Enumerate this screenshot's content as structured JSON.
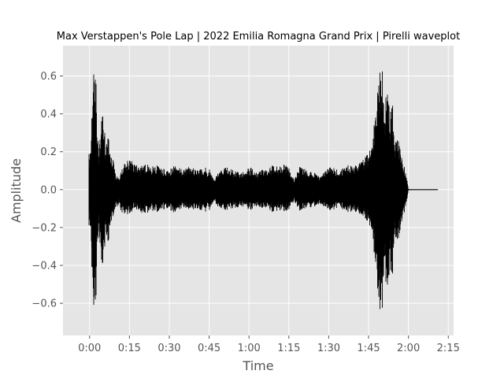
{
  "chart_data": {
    "type": "area",
    "title": "Max Verstappen's Pole Lap | 2022 Emilia Romagna Grand Prix | Pirelli waveplot",
    "xlabel": "Time",
    "ylabel": "Amplitude",
    "xlim": [
      -10,
      137
    ],
    "ylim": [
      -0.77,
      0.76
    ],
    "grid": true,
    "x_ticks": [
      0,
      15,
      30,
      45,
      60,
      75,
      90,
      105,
      120,
      135
    ],
    "x_tick_labels": [
      "0:00",
      "0:15",
      "0:30",
      "0:45",
      "1:00",
      "1:15",
      "1:30",
      "1:45",
      "2:00",
      "2:15"
    ],
    "y_ticks": [
      -0.6,
      -0.4,
      -0.2,
      0.0,
      0.2,
      0.4,
      0.6
    ],
    "y_tick_labels": [
      "−0.6",
      "−0.4",
      "−0.2",
      "0.0",
      "0.2",
      "0.4",
      "0.6"
    ],
    "series": [
      {
        "color": "#000000",
        "envelope": {
          "t": [
            0,
            0.5,
            1,
            1.5,
            2,
            2.5,
            3,
            3.5,
            4,
            5,
            6,
            7,
            8,
            9,
            10,
            11,
            12,
            13,
            15,
            17,
            19,
            21,
            23,
            25,
            27,
            29,
            31,
            33,
            35,
            37,
            39,
            41,
            43,
            45,
            47,
            49,
            51,
            53,
            55,
            57,
            59,
            61,
            63,
            65,
            67,
            69,
            71,
            73,
            75,
            77,
            79,
            81,
            83,
            85,
            87,
            89,
            91,
            93,
            95,
            97,
            99,
            101,
            103,
            105,
            107,
            109,
            110,
            111,
            112,
            112.5,
            113,
            114,
            115,
            116,
            117,
            118,
            119,
            119.5,
            120,
            122,
            125,
            128,
            131
          ],
          "upper": [
            0.19,
            0.25,
            0.45,
            0.6,
            0.68,
            0.55,
            0.3,
            0.22,
            0.3,
            0.5,
            0.22,
            0.3,
            0.2,
            0.15,
            0.08,
            0.06,
            0.1,
            0.15,
            0.16,
            0.14,
            0.12,
            0.14,
            0.12,
            0.13,
            0.12,
            0.1,
            0.12,
            0.13,
            0.11,
            0.13,
            0.12,
            0.1,
            0.12,
            0.11,
            0.06,
            0.1,
            0.12,
            0.11,
            0.1,
            0.09,
            0.11,
            0.12,
            0.09,
            0.11,
            0.12,
            0.13,
            0.12,
            0.14,
            0.12,
            0.05,
            0.12,
            0.11,
            0.1,
            0.09,
            0.07,
            0.11,
            0.12,
            0.11,
            0.12,
            0.13,
            0.13,
            0.14,
            0.16,
            0.2,
            0.35,
            0.62,
            0.7,
            0.4,
            0.66,
            0.5,
            0.38,
            0.5,
            0.25,
            0.3,
            0.2,
            0.14,
            0.1,
            0.05,
            0.002,
            0.001,
            0.001,
            0.001,
            0.001
          ],
          "lower": [
            -0.19,
            -0.25,
            -0.5,
            -0.6,
            -0.68,
            -0.55,
            -0.3,
            -0.22,
            -0.32,
            -0.5,
            -0.22,
            -0.3,
            -0.2,
            -0.13,
            -0.1,
            -0.08,
            -0.12,
            -0.14,
            -0.13,
            -0.1,
            -0.12,
            -0.13,
            -0.11,
            -0.12,
            -0.11,
            -0.1,
            -0.12,
            -0.12,
            -0.1,
            -0.11,
            -0.11,
            -0.1,
            -0.12,
            -0.11,
            -0.07,
            -0.1,
            -0.11,
            -0.1,
            -0.1,
            -0.09,
            -0.1,
            -0.11,
            -0.09,
            -0.1,
            -0.11,
            -0.12,
            -0.11,
            -0.12,
            -0.11,
            -0.06,
            -0.11,
            -0.1,
            -0.1,
            -0.09,
            -0.08,
            -0.1,
            -0.11,
            -0.1,
            -0.11,
            -0.12,
            -0.12,
            -0.13,
            -0.14,
            -0.18,
            -0.34,
            -0.64,
            -0.7,
            -0.4,
            -0.66,
            -0.5,
            -0.4,
            -0.5,
            -0.25,
            -0.3,
            -0.2,
            -0.14,
            -0.1,
            -0.05,
            -0.002,
            -0.001,
            -0.001,
            -0.001,
            -0.001
          ]
        }
      }
    ]
  }
}
